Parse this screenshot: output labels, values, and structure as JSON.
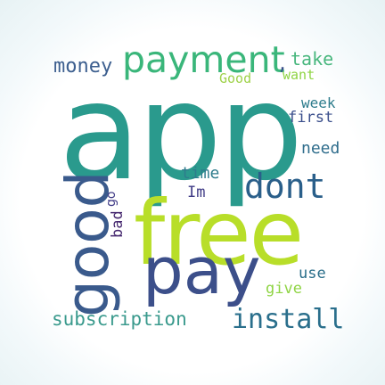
{
  "wordcloud": {
    "words": [
      {
        "text": "app",
        "color": "#2a9a8d"
      },
      {
        "text": "payment",
        "color": "#3ab67a"
      },
      {
        "text": "money",
        "color": "#3d5f8f"
      },
      {
        "text": "Good",
        "color": "#9fd24a"
      },
      {
        "text": "take",
        "color": "#49b77e"
      },
      {
        "text": "want",
        "color": "#8fd444"
      },
      {
        "text": "week",
        "color": "#2d7c8c"
      },
      {
        "text": "first",
        "color": "#3b4f8c"
      },
      {
        "text": "need",
        "color": "#2f6d8c"
      },
      {
        "text": "time",
        "color": "#2e7c8d"
      },
      {
        "text": "Im",
        "color": "#3f3b86"
      },
      {
        "text": "dont",
        "color": "#2a5f8a"
      },
      {
        "text": "free",
        "color": "#b8de29"
      },
      {
        "text": "pay",
        "color": "#3c4f8a"
      },
      {
        "text": "good",
        "color": "#3a5a8c"
      },
      {
        "text": "bad",
        "color": "#46286f"
      },
      {
        "text": "use",
        "color": "#2a6e8a"
      },
      {
        "text": "give",
        "color": "#8fd444"
      },
      {
        "text": "subscription",
        "color": "#3a9a8d"
      },
      {
        "text": "install",
        "color": "#2a6f8c"
      },
      {
        "text": "go",
        "color": "#3f3a86"
      },
      {
        "text": ",",
        "color": "#3a4f8a"
      }
    ]
  }
}
